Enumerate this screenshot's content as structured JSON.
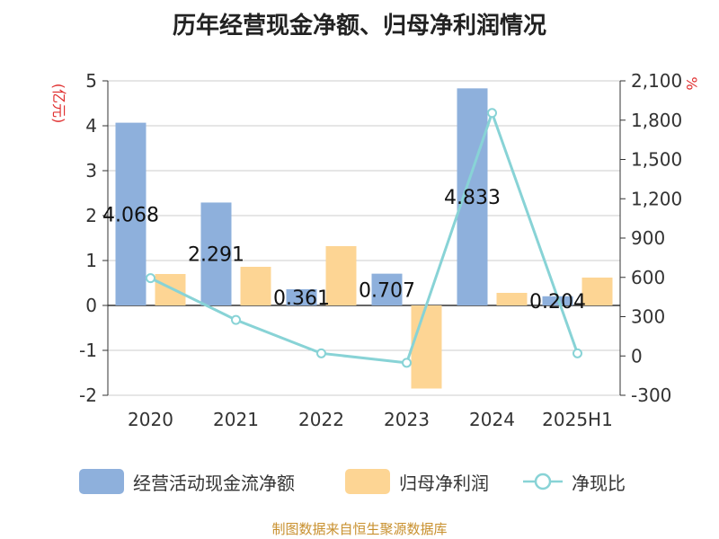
{
  "title": "历年经营现金净额、归母净利润情况",
  "source": "制图数据来自恒生聚源数据库",
  "chart_data": {
    "type": "bar",
    "categories": [
      "2020",
      "2021",
      "2022",
      "2023",
      "2024",
      "2025H1"
    ],
    "ylabel": "(亿元)",
    "y2label": "%",
    "ylim": [
      -2,
      5
    ],
    "y2lim": [
      -300,
      2100
    ],
    "yticks": [
      "5",
      "4",
      "3",
      "2",
      "1",
      "0",
      "-1",
      "-2"
    ],
    "y2ticks": [
      "2,100",
      "1,800",
      "1,500",
      "1,200",
      "900",
      "600",
      "300",
      "0",
      "-300"
    ],
    "grid": true,
    "legend_position": "bottom",
    "series": [
      {
        "name": "经营活动现金流净额",
        "axis": "left",
        "color": "#8eb0dc",
        "values": [
          4.068,
          2.291,
          0.361,
          0.707,
          4.833,
          0.204
        ],
        "labels": [
          "4.068",
          "2.291",
          "0.361",
          "0.707",
          "4.833",
          "0.204"
        ]
      },
      {
        "name": "归母净利润",
        "axis": "left",
        "color": "#fdd594",
        "values": [
          0.7,
          0.86,
          1.32,
          -1.85,
          0.28,
          0.62
        ]
      },
      {
        "name": "净现比",
        "axis": "right",
        "color": "#88d3d6",
        "values": [
          594,
          275,
          20,
          -52,
          1855,
          20
        ]
      }
    ]
  }
}
